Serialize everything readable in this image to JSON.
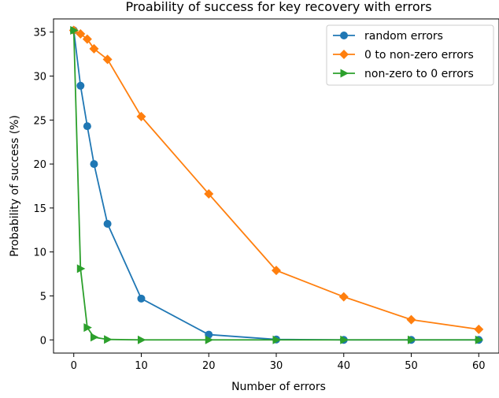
{
  "chart_data": {
    "type": "line",
    "title": "Proability of success for key recovery with errors",
    "xlabel": "Number of errors",
    "ylabel": "Probability of success (%)",
    "xlim": [
      -3,
      63
    ],
    "ylim": [
      -1.5,
      36.5
    ],
    "xticks": [
      0,
      10,
      20,
      30,
      40,
      50,
      60
    ],
    "yticks": [
      0,
      5,
      10,
      15,
      20,
      25,
      30,
      35
    ],
    "grid": false,
    "legend_position": "top-right",
    "series": [
      {
        "name": "random errors",
        "color": "#1f77b4",
        "marker": "circle",
        "x": [
          0,
          1,
          2,
          3,
          5,
          10,
          20,
          30,
          40,
          50,
          60
        ],
        "y": [
          35.2,
          28.9,
          24.3,
          20.0,
          13.2,
          4.7,
          0.6,
          0.05,
          0.0,
          0.0,
          0.0
        ]
      },
      {
        "name": "0 to non-zero errors",
        "color": "#ff7f0e",
        "marker": "diamond",
        "x": [
          0,
          1,
          2,
          3,
          5,
          10,
          20,
          30,
          40,
          50,
          60
        ],
        "y": [
          35.2,
          34.8,
          34.2,
          33.1,
          31.9,
          25.4,
          16.6,
          7.9,
          4.9,
          2.3,
          1.2
        ]
      },
      {
        "name": "non-zero to 0 errors",
        "color": "#2ca02c",
        "marker": "triangle-right",
        "x": [
          0,
          1,
          2,
          3,
          5,
          10,
          20,
          30,
          40,
          50,
          60
        ],
        "y": [
          35.2,
          8.1,
          1.4,
          0.3,
          0.05,
          0.0,
          0.0,
          0.0,
          0.0,
          0.0,
          0.0
        ]
      }
    ]
  }
}
